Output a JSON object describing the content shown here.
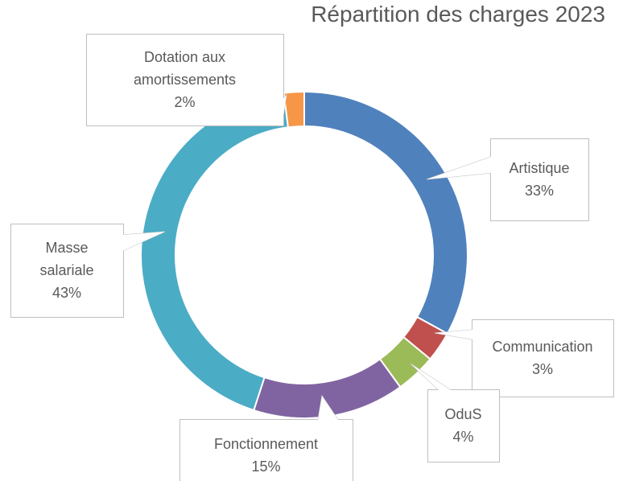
{
  "chart_data": {
    "type": "donut",
    "title": "Répartition des charges 2023",
    "categories": [
      "Artistique",
      "Communication",
      "OduS",
      "Fonctionnement",
      "Masse salariale",
      "Dotation aux amortissements"
    ],
    "values": [
      33,
      3,
      4,
      15,
      43,
      2
    ],
    "value_labels": [
      "33%",
      "3%",
      "4%",
      "15%",
      "43%",
      "2%"
    ],
    "colors": [
      "#4f81bd",
      "#c0504d",
      "#9bbb59",
      "#8064a2",
      "#4bacc6",
      "#f79646"
    ]
  }
}
